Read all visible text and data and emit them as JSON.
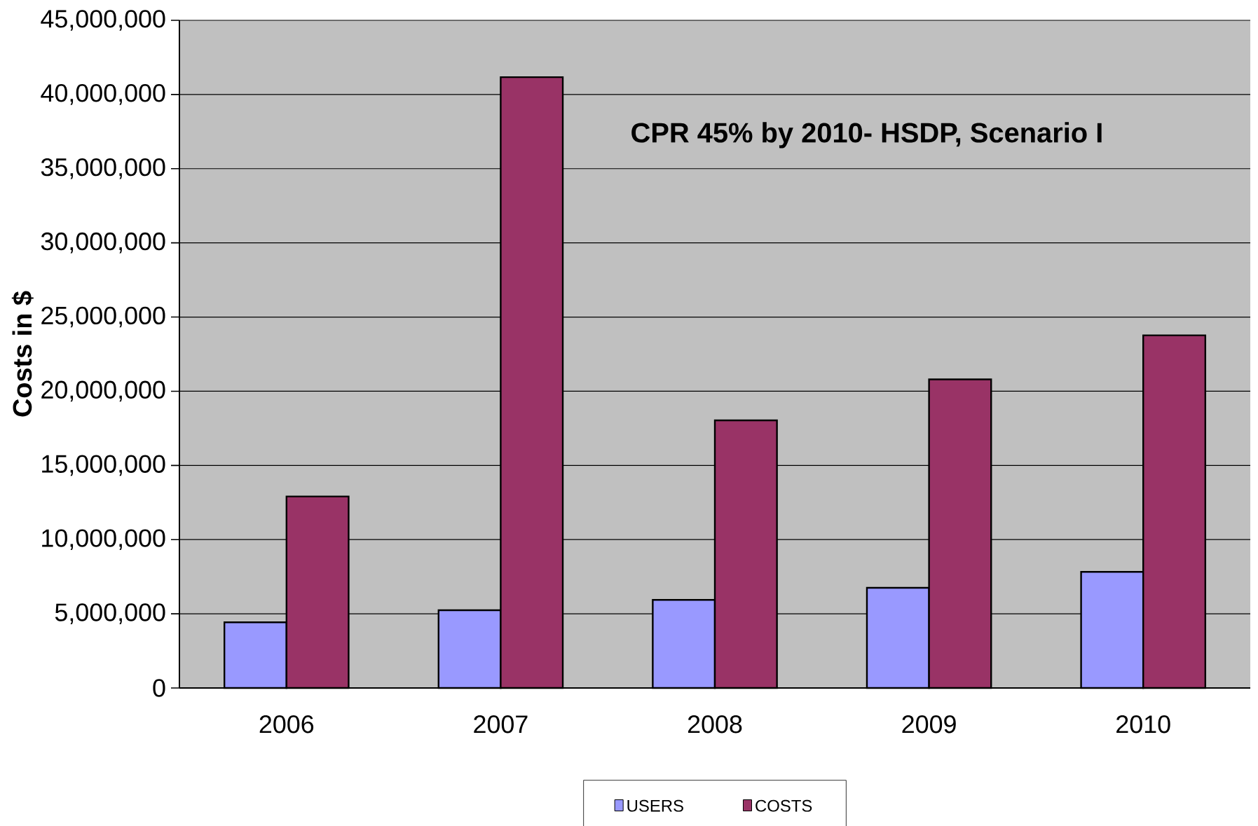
{
  "chart_data": {
    "type": "bar",
    "ylabel": "Costs in $",
    "categories": [
      "2006",
      "2007",
      "2008",
      "2009",
      "2010"
    ],
    "series": [
      {
        "name": "USERS",
        "color": "#9999ff",
        "values": [
          4430000,
          5240000,
          5940000,
          6750000,
          7830000
        ]
      },
      {
        "name": "COSTS",
        "color": "#993366",
        "values": [
          12910000,
          41170000,
          18040000,
          20800000,
          23770000
        ]
      }
    ],
    "ylim": [
      0,
      45000000
    ],
    "yticks": [
      {
        "value": 0,
        "label": "0"
      },
      {
        "value": 5000000,
        "label": "5,000,000"
      },
      {
        "value": 10000000,
        "label": "10,000,000"
      },
      {
        "value": 15000000,
        "label": "15,000,000"
      },
      {
        "value": 20000000,
        "label": "20,000,000"
      },
      {
        "value": 25000000,
        "label": "25,000,000"
      },
      {
        "value": 30000000,
        "label": "30,000,000"
      },
      {
        "value": 35000000,
        "label": "35,000,000"
      },
      {
        "value": 40000000,
        "label": "40,000,000"
      },
      {
        "value": 45000000,
        "label": "45,000,000"
      }
    ],
    "grid": "y",
    "legend": "bottom",
    "annotations": [
      "CPR 45% by 2010- HSDP, Scenario I"
    ]
  }
}
